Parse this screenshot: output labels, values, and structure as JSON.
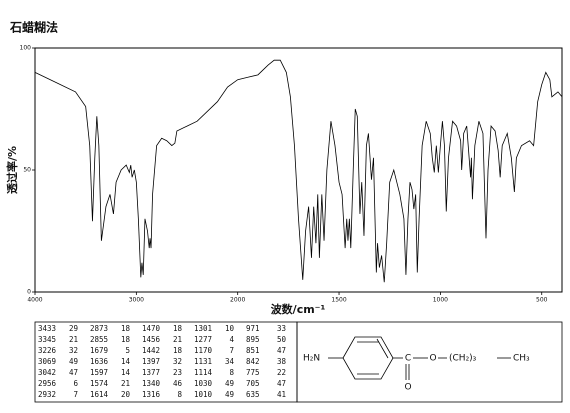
{
  "chart_data": {
    "type": "line",
    "title": "石蜡糊法",
    "xlabel": "波数/cm⁻¹",
    "ylabel": "透过率/%",
    "xlim": [
      4000,
      400
    ],
    "xticks": [
      4000,
      3000,
      2000,
      1500,
      1000,
      500
    ],
    "x_scale_break": 2000,
    "x_scale_factor": 2,
    "ylim": [
      0,
      100
    ],
    "yticks": [
      0,
      50,
      100
    ],
    "color": "#000000",
    "x": [
      4000,
      3800,
      3600,
      3500,
      3460,
      3433,
      3410,
      3390,
      3370,
      3345,
      3300,
      3260,
      3226,
      3200,
      3150,
      3100,
      3069,
      3055,
      3042,
      3020,
      3000,
      2980,
      2956,
      2945,
      2932,
      2915,
      2890,
      2873,
      2865,
      2855,
      2840,
      2800,
      2750,
      2700,
      2650,
      2620,
      2600,
      2500,
      2400,
      2300,
      2200,
      2100,
      2000,
      1950,
      1900,
      1850,
      1820,
      1790,
      1760,
      1740,
      1720,
      1700,
      1679,
      1665,
      1650,
      1636,
      1625,
      1614,
      1605,
      1597,
      1585,
      1574,
      1560,
      1540,
      1520,
      1500,
      1485,
      1470,
      1462,
      1456,
      1449,
      1442,
      1430,
      1420,
      1410,
      1397,
      1388,
      1377,
      1365,
      1355,
      1340,
      1330,
      1316,
      1310,
      1301,
      1290,
      1277,
      1265,
      1250,
      1230,
      1200,
      1180,
      1170,
      1160,
      1150,
      1140,
      1131,
      1122,
      1114,
      1105,
      1090,
      1070,
      1050,
      1040,
      1030,
      1020,
      1010,
      1000,
      990,
      980,
      971,
      960,
      940,
      920,
      900,
      895,
      885,
      870,
      851,
      847,
      842,
      830,
      810,
      790,
      775,
      765,
      750,
      730,
      715,
      705,
      695,
      670,
      650,
      635,
      625,
      600,
      560,
      540,
      520,
      500,
      480,
      460,
      450,
      420,
      400
    ],
    "values": [
      90,
      86,
      82,
      76,
      60,
      29,
      55,
      72,
      60,
      21,
      35,
      40,
      32,
      45,
      50,
      52,
      49,
      52,
      47,
      50,
      45,
      30,
      6,
      12,
      7,
      30,
      25,
      18,
      22,
      18,
      40,
      60,
      63,
      62,
      60,
      61,
      66,
      68,
      70,
      74,
      78,
      84,
      87,
      88,
      89,
      93,
      95,
      95,
      90,
      80,
      60,
      30,
      5,
      25,
      35,
      14,
      35,
      20,
      40,
      14,
      40,
      21,
      50,
      70,
      60,
      45,
      40,
      18,
      30,
      21,
      30,
      18,
      50,
      75,
      72,
      32,
      45,
      23,
      60,
      65,
      46,
      55,
      8,
      20,
      10,
      15,
      4,
      20,
      45,
      50,
      40,
      30,
      7,
      30,
      45,
      42,
      34,
      40,
      8,
      30,
      60,
      70,
      65,
      55,
      49,
      60,
      49,
      60,
      70,
      60,
      33,
      55,
      70,
      68,
      62,
      50,
      65,
      68,
      47,
      55,
      38,
      60,
      70,
      65,
      22,
      50,
      68,
      66,
      58,
      47,
      60,
      65,
      55,
      41,
      55,
      60,
      62,
      60,
      78,
      85,
      90,
      87,
      80,
      82,
      80
    ]
  },
  "table": {
    "columns": [
      [
        [
          "3433",
          "29"
        ],
        [
          "3345",
          "21"
        ],
        [
          "3226",
          "32"
        ],
        [
          "3069",
          "49"
        ],
        [
          "3042",
          "47"
        ],
        [
          "2956",
          "6"
        ],
        [
          "2932",
          "7"
        ]
      ],
      [
        [
          "2873",
          "18"
        ],
        [
          "2855",
          "18"
        ],
        [
          "1679",
          "5"
        ],
        [
          "1636",
          "14"
        ],
        [
          "1597",
          "14"
        ],
        [
          "1574",
          "21"
        ],
        [
          "1614",
          "20"
        ]
      ],
      [
        [
          "1470",
          "18"
        ],
        [
          "1456",
          "21"
        ],
        [
          "1442",
          "18"
        ],
        [
          "1397",
          "32"
        ],
        [
          "1377",
          "23"
        ],
        [
          "1340",
          "46"
        ],
        [
          "1316",
          "8"
        ]
      ],
      [
        [
          "1301",
          "10"
        ],
        [
          "1277",
          "4"
        ],
        [
          "1170",
          "7"
        ],
        [
          "1131",
          "34"
        ],
        [
          "1114",
          "8"
        ],
        [
          "1030",
          "49"
        ],
        [
          "1010",
          "49"
        ]
      ],
      [
        [
          "971",
          "33"
        ],
        [
          "895",
          "50"
        ],
        [
          "851",
          "47"
        ],
        [
          "842",
          "38"
        ],
        [
          "775",
          "22"
        ],
        [
          "705",
          "47"
        ],
        [
          "635",
          "41"
        ]
      ]
    ]
  },
  "structure": {
    "amine": "H₂N",
    "carbonyl_carbon": "C",
    "carbonyl_oxygen": "O",
    "ester_oxygen": "O",
    "chain": "(CH₂)₃",
    "terminal": "CH₃"
  }
}
